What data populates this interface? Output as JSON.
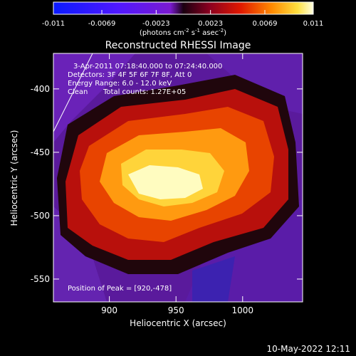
{
  "chart_data": {
    "type": "heatmap",
    "title": "Reconstructed RHESSI Image",
    "xlabel": "Heliocentric X (arcsec)",
    "ylabel": "Heliocentric Y (arcsec)",
    "xlim": [
      858,
      1045
    ],
    "ylim": [
      -568,
      -372
    ],
    "x_ticks": [
      900,
      950,
      1000
    ],
    "y_ticks": [
      -400,
      -450,
      -500,
      -550
    ],
    "colorbar": {
      "range": [
        -0.011,
        0.011
      ],
      "tick_labels": [
        "-0.011",
        "-0.0069",
        "-0.0023",
        "0.0023",
        "0.0069",
        "0.011"
      ],
      "units_text": "(photons cm",
      "units_sup1": "-2",
      "units_mid": " s",
      "units_sup2": "-1",
      "units_end": " asec",
      "units_sup3": "-2",
      "units_close": ")"
    },
    "annotations": {
      "time": "3-Apr-2011 07:18:40.000 to 07:24:40.000",
      "detectors": "Detectors: 3F 4F 5F 6F 7F 8F, Att 0",
      "energy": "Energy Range: 6.0 - 12.0 keV",
      "clean": "Clean",
      "counts": "Total counts: 1.27E+05",
      "peak": "Position of Peak = [920,-478]"
    },
    "peak": [
      920,
      -478
    ],
    "grid": false
  },
  "footer_date": "10-May-2022 12:11"
}
